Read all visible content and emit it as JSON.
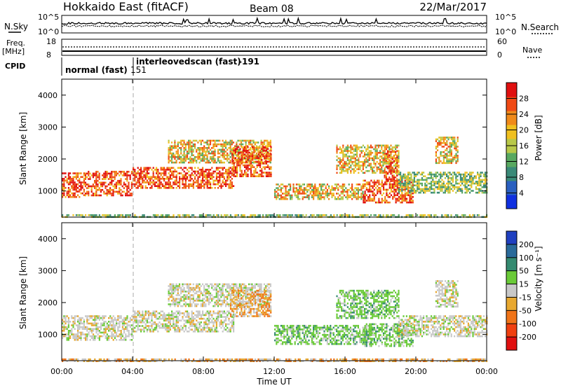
{
  "header": {
    "title": "Hokkaido East (fitACF)",
    "beam": "Beam 08",
    "date": "22/Mar/2017"
  },
  "chart_data": [
    {
      "type": "line",
      "panel": "noise",
      "left_label": "N.Sky",
      "right_label": "N.Search",
      "left_ticks": [
        "10^5",
        "10^0"
      ],
      "right_ticks": [
        "10^5",
        "10^0"
      ]
    },
    {
      "type": "line",
      "panel": "frequency",
      "left_label": [
        "Freq.",
        "[MHz]"
      ],
      "right_label": "Nave",
      "left_ticks": [
        "18",
        "8"
      ],
      "right_ticks": [
        "60",
        "0"
      ]
    },
    {
      "type": "table",
      "panel": "cpid",
      "label": "CPID",
      "segments": [
        {
          "name": "normal (fast)",
          "id": "151",
          "start_hour": 0,
          "end_hour": 4
        },
        {
          "name": "interleovedscan (fast)",
          "id": "-191",
          "start_hour": 4,
          "end_hour": 24
        }
      ]
    },
    {
      "type": "heatmap",
      "panel": "power",
      "ylabel": "Slant Range [km]",
      "yticks": [
        1000,
        2000,
        3000,
        4000
      ],
      "ylim": [
        180,
        4500
      ],
      "colorbar": {
        "label": "Power [dB]",
        "ticks": [
          4,
          8,
          12,
          16,
          20,
          24,
          28
        ],
        "range": [
          0,
          32
        ],
        "colors": [
          "#1030e0",
          "#2a60c0",
          "#3a8a78",
          "#58a860",
          "#b8c848",
          "#f0c020",
          "#f08a1a",
          "#f04a14",
          "#e01010"
        ]
      },
      "scatter_regions": [
        {
          "hours": [
            0.0,
            1.3
          ],
          "ranges": [
            830,
            1580
          ],
          "level": "high"
        },
        {
          "hours": [
            1.3,
            4.0
          ],
          "ranges": [
            880,
            1630
          ],
          "level": "high"
        },
        {
          "hours": [
            4.0,
            9.7
          ],
          "ranges": [
            1080,
            1750
          ],
          "level": "high"
        },
        {
          "hours": [
            6.0,
            11.8
          ],
          "ranges": [
            1900,
            2600
          ],
          "level": "mid"
        },
        {
          "hours": [
            9.6,
            11.8
          ],
          "ranges": [
            1450,
            2400
          ],
          "level": "high"
        },
        {
          "hours": [
            12.0,
            17.0
          ],
          "ranges": [
            720,
            1230
          ],
          "level": "mid"
        },
        {
          "hours": [
            17.0,
            19.8
          ],
          "ranges": [
            650,
            1350
          ],
          "level": "high"
        },
        {
          "hours": [
            15.5,
            19.0
          ],
          "ranges": [
            1550,
            2450
          ],
          "level": "mid"
        },
        {
          "hours": [
            18.2,
            18.9
          ],
          "ranges": [
            1300,
            2250
          ],
          "level": "high"
        },
        {
          "hours": [
            19.0,
            24.0
          ],
          "ranges": [
            950,
            1600
          ],
          "level": "low"
        },
        {
          "hours": [
            21.1,
            22.4
          ],
          "ranges": [
            1900,
            2700
          ],
          "level": "mid"
        },
        {
          "hours": [
            0.0,
            24.0
          ],
          "ranges": [
            180,
            270
          ],
          "level": "low"
        }
      ]
    },
    {
      "type": "heatmap",
      "panel": "velocity",
      "ylabel": "Slant Range [km]",
      "yticks": [
        1000,
        2000,
        3000,
        4000
      ],
      "ylim": [
        180,
        4500
      ],
      "xlabel": "Time UT",
      "xticks": [
        "00:00",
        "04:00",
        "08:00",
        "12:00",
        "16:00",
        "20:00",
        "00:00"
      ],
      "xlim_hours": [
        0,
        24
      ],
      "colorbar": {
        "label": "Velocity [m s⁻¹]",
        "ticks": [
          "200",
          "100",
          "50",
          "15",
          "-15",
          "-50",
          "-100",
          "-200"
        ],
        "colors": [
          "#2040c0",
          "#2a6a9a",
          "#348a70",
          "#6aca38",
          "#c8c8c8",
          "#e8a830",
          "#f07418",
          "#f04010",
          "#e01010"
        ]
      },
      "scatter_regions": [
        {
          "hours": [
            0.0,
            4.0
          ],
          "ranges": [
            850,
            1600
          ],
          "level": "gray"
        },
        {
          "hours": [
            4.0,
            9.7
          ],
          "ranges": [
            1080,
            1750
          ],
          "level": "gray"
        },
        {
          "hours": [
            6.0,
            11.8
          ],
          "ranges": [
            1900,
            2600
          ],
          "level": "gray"
        },
        {
          "hours": [
            9.5,
            11.8
          ],
          "ranges": [
            1600,
            2400
          ],
          "level": "orange"
        },
        {
          "hours": [
            12.0,
            17.5
          ],
          "ranges": [
            700,
            1300
          ],
          "level": "green"
        },
        {
          "hours": [
            17.0,
            19.8
          ],
          "ranges": [
            650,
            1350
          ],
          "level": "green"
        },
        {
          "hours": [
            15.5,
            19.0
          ],
          "ranges": [
            1500,
            2400
          ],
          "level": "green"
        },
        {
          "hours": [
            19.0,
            24.0
          ],
          "ranges": [
            950,
            1600
          ],
          "level": "gray"
        },
        {
          "hours": [
            21.1,
            22.4
          ],
          "ranges": [
            1900,
            2700
          ],
          "level": "gray"
        },
        {
          "hours": [
            0.0,
            24.0
          ],
          "ranges": [
            180,
            250
          ],
          "level": "orange"
        }
      ]
    }
  ]
}
